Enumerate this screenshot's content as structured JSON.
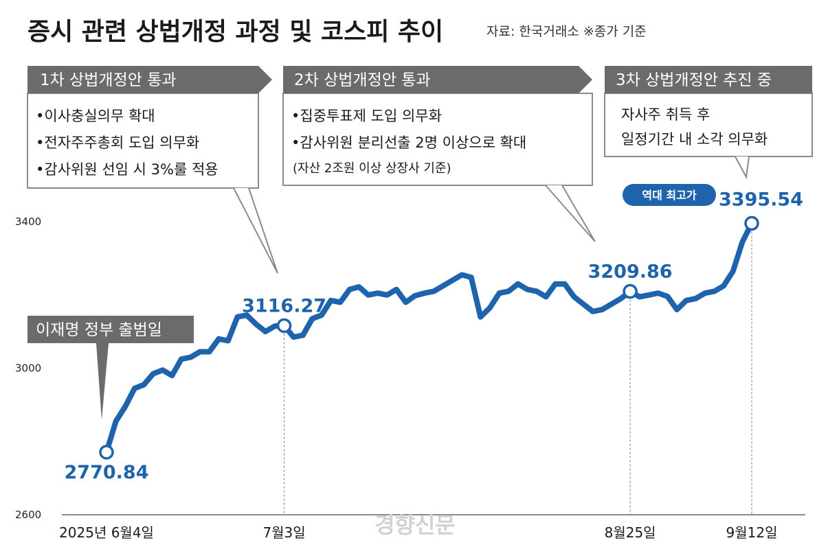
{
  "title": "증시 관련 상법개정 과정 및 코스피 추이",
  "source": "자료: 한국거래소 ※종가 기준",
  "watermark": "경향신문",
  "colors": {
    "line": "#1f63ad",
    "header_bg": "#6b6b6b",
    "callout_border": "#8a8a8a"
  },
  "callouts": [
    {
      "header": "1차 상법개정안 통과",
      "lines": [
        "•이사충실의무 확대",
        "•전자주주총회 도입 의무화",
        "•감사위원 선임 시 3%룰 적용"
      ]
    },
    {
      "header": "2차 상법개정안 통과",
      "lines": [
        "•집중투표제 도입 의무화",
        "•감사위원 분리선출 2명 이상으로 확대"
      ],
      "note": "(자산 2조원 이상 상장사 기준)"
    },
    {
      "header": "3차 상법개정안 추진 중",
      "lines": [
        "자사주 취득 후",
        "일정기간 내 소각 의무화"
      ]
    }
  ],
  "event_label": "이재명 정부 출범일",
  "record_label": "역대 최고가",
  "chart_data": {
    "type": "line",
    "title": "증시 관련 상법개정 과정 및 코스피 추이",
    "xlabel": "",
    "ylabel": "",
    "ylim": [
      2600,
      3450
    ],
    "yticks": [
      2600,
      3000,
      3400
    ],
    "ytick_labels": [
      "2600",
      "3000",
      "3400"
    ],
    "xticks": [
      {
        "index": 0,
        "label": "2025년 6월4일"
      },
      {
        "index": 19,
        "label": "7월3일"
      },
      {
        "index": 56,
        "label": "8월25일"
      },
      {
        "index": 69,
        "label": "9월12일"
      }
    ],
    "annotations": [
      {
        "index": 0,
        "value": 2770.84,
        "label": "2770.84"
      },
      {
        "index": 19,
        "value": 3116.27,
        "label": "3116.27"
      },
      {
        "index": 56,
        "value": 3209.86,
        "label": "3209.86"
      },
      {
        "index": 69,
        "value": 3395.54,
        "label": "3395.54"
      }
    ],
    "series": [
      {
        "values": [
          2770.84,
          2855,
          2895,
          2945,
          2955,
          2985,
          2995,
          2980,
          3025,
          3030,
          3045,
          3045,
          3080,
          3075,
          3140,
          3145,
          3120,
          3100,
          3115,
          3116.27,
          3085,
          3090,
          3135,
          3145,
          3185,
          3180,
          3215,
          3222,
          3200,
          3205,
          3200,
          3215,
          3180,
          3198,
          3205,
          3210,
          3225,
          3240,
          3255,
          3248,
          3140,
          3165,
          3205,
          3210,
          3230,
          3215,
          3210,
          3195,
          3230,
          3230,
          3195,
          3175,
          3155,
          3160,
          3175,
          3190,
          3209.86,
          3195,
          3200,
          3205,
          3196,
          3160,
          3185,
          3190,
          3205,
          3210,
          3225,
          3265,
          3345,
          3395.54
        ]
      }
    ]
  }
}
